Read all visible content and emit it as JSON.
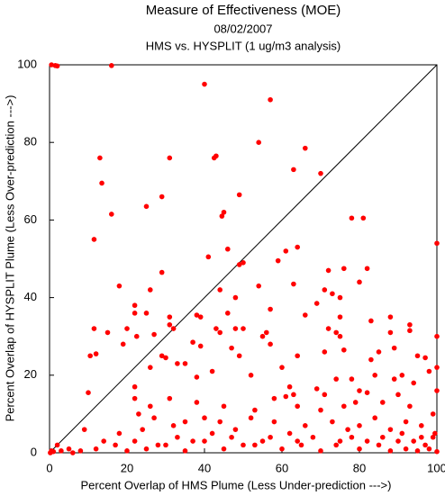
{
  "chart_data": {
    "type": "scatter",
    "title": "Measure of Effectiveness (MOE)",
    "subtitle": "08/02/2007",
    "subtitle2": "HMS vs. HYSPLIT  (1 ug/m3 analysis)",
    "xlabel": "Percent Overlap of HMS Plume (Less Under-prediction --->)",
    "ylabel": "Percent Overlap of HYSPLIT Plume (Less Over-prediction --->)",
    "color": "#ff0000",
    "xlim": [
      0,
      100
    ],
    "ylim": [
      0,
      100
    ],
    "xticks": [
      0,
      20,
      40,
      60,
      80,
      100
    ],
    "yticks": [
      0,
      20,
      40,
      60,
      80,
      100
    ],
    "x": [
      0.5,
      1.5,
      2,
      16,
      40,
      57,
      54,
      66,
      43,
      42.5,
      31,
      13,
      70,
      63,
      13.5,
      29,
      49,
      25,
      16,
      45,
      44.5,
      11.5,
      64,
      61,
      81,
      78,
      100,
      46,
      41,
      50,
      49,
      59,
      29,
      76,
      82,
      72,
      18,
      26,
      44,
      63,
      54,
      73,
      80,
      71,
      48,
      69,
      75,
      39,
      38,
      25,
      22,
      22,
      31,
      46,
      57,
      66,
      75,
      88,
      83,
      93,
      11.5,
      15,
      27,
      31,
      32,
      20,
      22.5,
      43,
      44,
      48,
      50,
      55,
      56,
      72,
      74,
      75,
      88,
      93,
      10.5,
      12,
      19,
      29,
      30,
      37,
      39,
      47,
      49,
      57,
      64,
      71,
      76,
      85,
      89,
      83,
      95,
      100,
      97,
      22,
      26,
      33,
      35,
      38,
      42,
      52,
      60,
      61,
      63,
      62,
      69,
      71,
      74,
      78,
      80,
      82,
      84,
      89,
      91,
      94,
      98,
      100,
      10,
      22,
      31,
      26,
      38,
      45,
      53,
      58,
      64,
      70,
      76,
      79,
      86,
      90,
      93,
      100,
      23,
      24,
      27,
      32,
      35,
      40,
      44,
      48,
      52,
      58,
      62,
      66,
      73,
      77,
      80,
      84,
      88,
      92,
      96,
      99,
      2,
      5,
      8,
      12,
      14,
      17,
      20,
      25,
      30,
      35,
      40,
      45,
      50,
      55,
      60,
      65,
      70,
      75,
      80,
      85,
      88,
      90,
      92,
      95,
      97,
      99,
      100,
      98,
      99.5,
      96,
      94,
      91,
      86,
      82,
      78,
      74,
      68,
      64,
      57,
      53,
      47,
      42,
      37,
      33,
      28,
      22,
      18,
      9,
      3,
      1,
      0.5,
      6,
      0.2
    ],
    "values": [
      100,
      99.8,
      99.7,
      99.8,
      95,
      91,
      80,
      78.5,
      76.5,
      76,
      76,
      76,
      72,
      73,
      69.5,
      66,
      66.5,
      63.5,
      61.5,
      62,
      61,
      55,
      53,
      52,
      60.5,
      60.5,
      54,
      52.5,
      50.5,
      49,
      48.5,
      49.5,
      46.5,
      47.5,
      47.5,
      47,
      43,
      42,
      42,
      43.5,
      43,
      41,
      44,
      42,
      40,
      38.5,
      40,
      35,
      35.5,
      36,
      36,
      38,
      35,
      36,
      37,
      35.5,
      35,
      35,
      34,
      33,
      32,
      31,
      30.5,
      33,
      32,
      32,
      30,
      32,
      31,
      32,
      32,
      30,
      31,
      32,
      31,
      30,
      31,
      31.5,
      25,
      25.5,
      28,
      25,
      24.5,
      28.5,
      27.5,
      27,
      25,
      28,
      25,
      26,
      26.5,
      26,
      27,
      24,
      25,
      30,
      24.5,
      17,
      22,
      23,
      23,
      19.5,
      21,
      20,
      22,
      14.5,
      15,
      17,
      16.5,
      15,
      19,
      19,
      16,
      15.5,
      20,
      19,
      20,
      18,
      21,
      22,
      15.5,
      14,
      14,
      12,
      13,
      12,
      11,
      14,
      12,
      11,
      12,
      13,
      13,
      15,
      12,
      16,
      10,
      6,
      9,
      7,
      8,
      9,
      8,
      6,
      9,
      8,
      5,
      7,
      8,
      6,
      7,
      9,
      6,
      8,
      7,
      10,
      2,
      1,
      0.5,
      1,
      3,
      2,
      0.5,
      1,
      2,
      0.5,
      3,
      1,
      2,
      3,
      1,
      2,
      0.5,
      3,
      1,
      2,
      0.5,
      3,
      1,
      0.5,
      2,
      4,
      0.3,
      1,
      5,
      4,
      3,
      5,
      4,
      3,
      4,
      2,
      4,
      3,
      4,
      2,
      4,
      5,
      3,
      4,
      2,
      3,
      5,
      6,
      0.5,
      0.3,
      0.5,
      0,
      0
    ]
  }
}
